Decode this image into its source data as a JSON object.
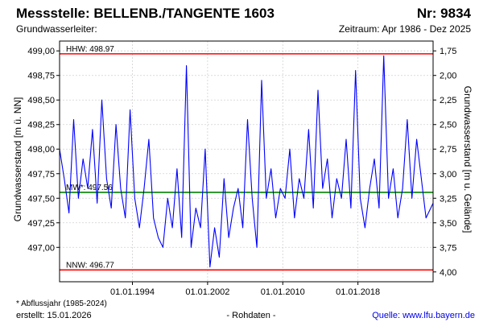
{
  "header": {
    "station_label": "Messstelle:",
    "station_name": "BELLENB./TANGENTE 1603",
    "number_label": "Nr:",
    "number_value": "9834",
    "aquifer_label": "Grundwasserleiter:",
    "period_label": "Zeitraum:",
    "period_value": "Apr 1986 - Dez 2025"
  },
  "footer": {
    "note": "* Abflussjahr (1985-2024)",
    "created_label": "erstellt:",
    "created_date": "15.01.2026",
    "data_type": "- Rohdaten -",
    "source_label": "Quelle:",
    "source_url": "www.lfu.bayern.de"
  },
  "colors": {
    "series": "#0000ff",
    "extreme_lines": "#ff0000",
    "mean_line": "#008000",
    "grid": "#d0d0d0"
  },
  "chart_data": {
    "type": "line",
    "title": "Messstelle: BELLENB./TANGENTE 1603",
    "ylabel": "Grundwasserstand [m ü. NN]",
    "ylabel_right": "Grundwasserstand [m u. Gelände]",
    "xlim": [
      "1986-04-01",
      "2025-12-31"
    ],
    "ylim": [
      496.65,
      499.1
    ],
    "yticks": [
      497.0,
      497.25,
      497.5,
      497.75,
      498.0,
      498.25,
      498.5,
      498.75,
      499.0
    ],
    "ytick_labels": [
      "497,00",
      "497,25",
      "497,50",
      "497,75",
      "498,00",
      "498,25",
      "498,50",
      "498,75",
      "499,00"
    ],
    "yticks_right": [
      1.75,
      2.0,
      2.25,
      2.5,
      2.75,
      3.0,
      3.25,
      3.5,
      3.75,
      4.0
    ],
    "ytick_right_labels": [
      "1,75",
      "2,00",
      "2,25",
      "2,50",
      "2,75",
      "3,00",
      "3,25",
      "3,50",
      "3,75",
      "4,00"
    ],
    "xticks": [
      "1994-01-01",
      "2002-01-01",
      "2010-01-01",
      "2018-01-01"
    ],
    "xtick_labels": [
      "01.01.1994",
      "01.01.2002",
      "01.01.2010",
      "01.01.2018"
    ],
    "grid": true,
    "reference_lines": [
      {
        "label": "HHW: 498.97",
        "value": 498.97,
        "color": "#ff0000"
      },
      {
        "label": "MW*: 497.56",
        "value": 497.56,
        "color": "#008000"
      },
      {
        "label": "NNW: 496.77",
        "value": 496.77,
        "color": "#ff0000"
      }
    ],
    "series": [
      {
        "x": [
          "1986-04-01",
          "1986-10-01",
          "1987-04-01",
          "1987-10-01",
          "1988-04-01",
          "1988-10-01",
          "1989-04-01",
          "1989-10-01",
          "1990-04-01",
          "1990-10-01",
          "1991-04-01",
          "1991-10-01",
          "1992-04-01",
          "1992-10-01",
          "1993-04-01",
          "1993-10-01",
          "1994-04-01",
          "1994-10-01",
          "1995-04-01",
          "1995-10-01",
          "1996-04-01",
          "1996-10-01",
          "1997-04-01",
          "1997-10-01",
          "1998-04-01",
          "1998-10-01",
          "1999-04-01",
          "1999-10-01",
          "2000-04-01",
          "2000-10-01",
          "2001-04-01",
          "2001-10-01",
          "2002-04-01",
          "2002-10-01",
          "2003-04-01",
          "2003-10-01",
          "2004-04-01",
          "2004-10-01",
          "2005-04-01",
          "2005-10-01",
          "2006-04-01",
          "2006-10-01",
          "2007-04-01",
          "2007-10-01",
          "2008-04-01",
          "2008-10-01",
          "2009-04-01",
          "2009-10-01",
          "2010-04-01",
          "2010-10-01",
          "2011-04-01",
          "2011-10-01",
          "2012-04-01",
          "2012-10-01",
          "2013-04-01",
          "2013-10-01",
          "2014-04-01",
          "2014-10-01",
          "2015-04-01",
          "2015-10-01",
          "2016-04-01",
          "2016-10-01",
          "2017-04-01",
          "2017-10-01",
          "2018-04-01",
          "2018-10-01",
          "2019-04-01",
          "2019-10-01",
          "2020-04-01",
          "2020-10-01",
          "2021-04-01",
          "2021-10-01",
          "2022-04-01",
          "2022-10-01",
          "2023-04-01",
          "2023-10-01",
          "2024-04-01",
          "2024-10-01",
          "2025-04-01",
          "2025-12-31"
        ],
        "y": [
          498.0,
          497.7,
          497.35,
          498.3,
          497.5,
          497.9,
          497.6,
          498.2,
          497.45,
          498.5,
          497.7,
          497.4,
          498.25,
          497.6,
          497.3,
          498.4,
          497.5,
          497.2,
          497.6,
          498.1,
          497.3,
          497.1,
          497.0,
          497.5,
          497.2,
          497.8,
          497.1,
          498.85,
          497.0,
          497.4,
          497.2,
          498.0,
          496.8,
          497.2,
          496.9,
          497.7,
          497.1,
          497.4,
          497.6,
          497.2,
          498.3,
          497.5,
          497.0,
          498.7,
          497.5,
          497.8,
          497.3,
          497.6,
          497.5,
          498.0,
          497.3,
          497.7,
          497.5,
          498.2,
          497.4,
          498.6,
          497.6,
          497.9,
          497.3,
          497.7,
          497.5,
          498.1,
          497.4,
          498.8,
          497.5,
          497.2,
          497.6,
          497.9,
          497.4,
          498.95,
          497.5,
          497.8,
          497.3,
          497.6,
          498.3,
          497.5,
          498.1,
          497.7,
          497.3,
          497.45
        ]
      }
    ]
  }
}
